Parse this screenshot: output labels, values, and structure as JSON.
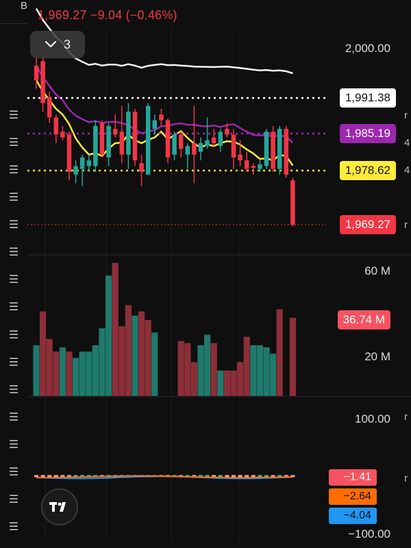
{
  "header": {
    "letter": "B",
    "price_line": "1,969.27  −9.04 (−0.46%)"
  },
  "collapse_button": {
    "count": "3",
    "icon": "chevron-down-icon"
  },
  "price_axis": {
    "labels": [
      "2,000.00"
    ],
    "markers": [
      {
        "value": "1,991.38",
        "bg": "#ffffff",
        "fg": "#111111"
      },
      {
        "value": "1,985.19",
        "bg": "#9c27b0",
        "fg": "#ffffff"
      },
      {
        "value": "1,978.62",
        "bg": "#ffeb3b",
        "fg": "#111111"
      },
      {
        "value": "1,969.27",
        "bg": "#f23645",
        "fg": "#ffffff"
      }
    ]
  },
  "volume_axis": {
    "labels": [
      "60 M",
      "20 M"
    ],
    "marker": {
      "value": "36.74 M",
      "bg": "#f7525f",
      "fg": "#ffffff"
    }
  },
  "indicator_axis": {
    "labels": [
      "100.00",
      "−100.00"
    ],
    "markers": [
      {
        "value": "−1.41",
        "bg": "#f7525f",
        "fg": "#ffffff"
      },
      {
        "value": "−2.64",
        "bg": "#ff6d00",
        "fg": "#111111"
      },
      {
        "value": "−4.04",
        "bg": "#2196f3",
        "fg": "#111111"
      }
    ]
  },
  "colors": {
    "up": "#26a69a",
    "down": "#f23645",
    "vol_up": "#1f7a6c",
    "vol_down": "#8c2f39",
    "ma_white": "#f5f5f5",
    "ma_purple": "#9c27b0",
    "ma_yellow": "#ffeb3b",
    "macd": "#2196f3",
    "signal": "#ff6d00"
  },
  "candles": [
    {
      "o": 1997.0,
      "h": 1998.5,
      "l": 1993.0,
      "c": 1994.5
    },
    {
      "o": 1997.8,
      "h": 1999.0,
      "l": 1989.0,
      "c": 1990.5
    },
    {
      "o": 1991.5,
      "h": 1992.5,
      "l": 1987.0,
      "c": 1988.0
    },
    {
      "o": 1988.0,
      "h": 1988.5,
      "l": 1983.5,
      "c": 1985.0
    },
    {
      "o": 1985.5,
      "h": 1986.5,
      "l": 1984.0,
      "c": 1984.5
    },
    {
      "o": 1985.0,
      "h": 1985.5,
      "l": 1977.0,
      "c": 1978.5
    },
    {
      "o": 1978.0,
      "h": 1980.5,
      "l": 1976.5,
      "c": 1979.5
    },
    {
      "o": 1979.0,
      "h": 1981.5,
      "l": 1976.0,
      "c": 1981.0
    },
    {
      "o": 1979.5,
      "h": 1981.5,
      "l": 1978.5,
      "c": 1980.5
    },
    {
      "o": 1979.5,
      "h": 1987.5,
      "l": 1978.5,
      "c": 1986.5
    },
    {
      "o": 1987.0,
      "h": 1987.5,
      "l": 1981.0,
      "c": 1981.5
    },
    {
      "o": 1981.0,
      "h": 1987.0,
      "l": 1979.5,
      "c": 1986.5
    },
    {
      "o": 1986.0,
      "h": 1988.5,
      "l": 1984.5,
      "c": 1985.0
    },
    {
      "o": 1985.5,
      "h": 1990.0,
      "l": 1980.0,
      "c": 1981.5
    },
    {
      "o": 1981.5,
      "h": 1990.5,
      "l": 1979.0,
      "c": 1989.0
    },
    {
      "o": 1989.0,
      "h": 1989.5,
      "l": 1979.5,
      "c": 1980.5
    },
    {
      "o": 1980.0,
      "h": 1981.5,
      "l": 1976.0,
      "c": 1978.5
    },
    {
      "o": 1978.0,
      "h": 1990.5,
      "l": 1978.0,
      "c": 1990.0
    },
    {
      "o": 1986.0,
      "h": 1988.5,
      "l": 1985.0,
      "c": 1987.5
    },
    {
      "o": 1988.5,
      "h": 1989.5,
      "l": 1986.5,
      "c": 1987.5
    },
    {
      "o": 1987.5,
      "h": 1987.8,
      "l": 1980.0,
      "c": 1981.0
    },
    {
      "o": 1981.5,
      "h": 1985.5,
      "l": 1980.5,
      "c": 1985.0
    },
    {
      "o": 1985.0,
      "h": 1985.5,
      "l": 1981.0,
      "c": 1982.5
    },
    {
      "o": 1981.5,
      "h": 1983.5,
      "l": 1979.0,
      "c": 1983.0
    },
    {
      "o": 1983.5,
      "h": 1990.0,
      "l": 1976.5,
      "c": 1981.5
    },
    {
      "o": 1982.0,
      "h": 1984.5,
      "l": 1980.5,
      "c": 1983.5
    },
    {
      "o": 1983.0,
      "h": 1988.0,
      "l": 1982.5,
      "c": 1984.0
    },
    {
      "o": 1984.5,
      "h": 1986.0,
      "l": 1983.0,
      "c": 1983.5
    },
    {
      "o": 1983.0,
      "h": 1986.0,
      "l": 1982.0,
      "c": 1985.5
    },
    {
      "o": 1986.0,
      "h": 1987.0,
      "l": 1984.5,
      "c": 1985.0
    },
    {
      "o": 1985.0,
      "h": 1986.0,
      "l": 1979.0,
      "c": 1981.0
    },
    {
      "o": 1981.5,
      "h": 1984.0,
      "l": 1979.5,
      "c": 1980.5
    },
    {
      "o": 1980.5,
      "h": 1982.0,
      "l": 1978.5,
      "c": 1979.0
    },
    {
      "o": 1979.5,
      "h": 1980.0,
      "l": 1978.0,
      "c": 1979.2
    },
    {
      "o": 1979.0,
      "h": 1980.5,
      "l": 1978.5,
      "c": 1979.8
    },
    {
      "o": 1979.5,
      "h": 1986.0,
      "l": 1979.0,
      "c": 1985.5
    },
    {
      "o": 1985.5,
      "h": 1986.5,
      "l": 1978.5,
      "c": 1979.0
    },
    {
      "o": 1979.0,
      "h": 1986.5,
      "l": 1978.0,
      "c": 1986.0
    },
    {
      "o": 1986.0,
      "h": 1986.5,
      "l": 1977.5,
      "c": 1978.0
    },
    {
      "o": 1977.0,
      "h": 1977.5,
      "l": 1969.0,
      "c": 1969.27
    }
  ],
  "volume": [
    {
      "v": 24,
      "d": "up"
    },
    {
      "v": 40,
      "d": "down"
    },
    {
      "v": 27,
      "d": "down"
    },
    {
      "v": 21,
      "d": "down"
    },
    {
      "v": 23,
      "d": "up"
    },
    {
      "v": 21,
      "d": "down"
    },
    {
      "v": 18,
      "d": "up"
    },
    {
      "v": 21,
      "d": "up"
    },
    {
      "v": 21,
      "d": "up"
    },
    {
      "v": 24,
      "d": "up"
    },
    {
      "v": 32,
      "d": "up"
    },
    {
      "v": 57,
      "d": "up"
    },
    {
      "v": 63,
      "d": "down"
    },
    {
      "v": 33,
      "d": "down"
    },
    {
      "v": 43,
      "d": "down"
    },
    {
      "v": 38,
      "d": "up"
    },
    {
      "v": 40,
      "d": "down"
    },
    {
      "v": 36,
      "d": "down"
    },
    {
      "v": 30,
      "d": "up"
    },
    {
      "v": 0,
      "d": "none"
    },
    {
      "v": 0,
      "d": "none"
    },
    {
      "v": 0,
      "d": "none"
    },
    {
      "v": 26,
      "d": "down"
    },
    {
      "v": 25,
      "d": "down"
    },
    {
      "v": 16,
      "d": "down"
    },
    {
      "v": 24,
      "d": "up"
    },
    {
      "v": 29,
      "d": "up"
    },
    {
      "v": 25,
      "d": "down"
    },
    {
      "v": 12,
      "d": "up"
    },
    {
      "v": 12,
      "d": "down"
    },
    {
      "v": 12,
      "d": "down"
    },
    {
      "v": 16,
      "d": "down"
    },
    {
      "v": 28,
      "d": "down"
    },
    {
      "v": 24,
      "d": "up"
    },
    {
      "v": 24,
      "d": "up"
    },
    {
      "v": 23,
      "d": "up"
    },
    {
      "v": 20,
      "d": "up"
    },
    {
      "v": 41,
      "d": "down"
    },
    {
      "v": 0,
      "d": "none"
    },
    {
      "v": 37,
      "d": "down"
    }
  ]
}
